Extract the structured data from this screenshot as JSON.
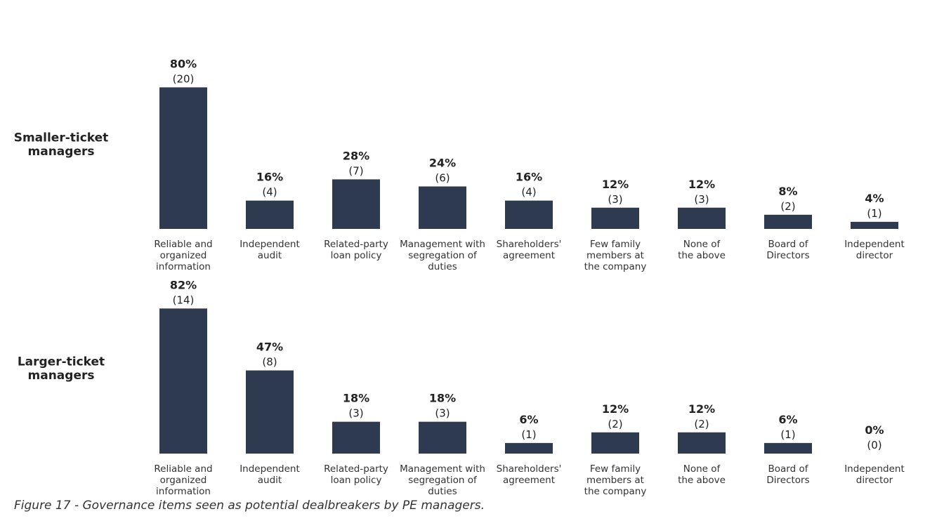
{
  "caption": "Figure 17 - Governance items seen as potential dealbreakers by PE managers.",
  "colors": {
    "bar": "#2d3a50",
    "text": "#222222"
  },
  "chart_data": [
    {
      "type": "bar",
      "title": "Smaller-ticket managers",
      "categories": [
        [
          "Reliable and",
          "organized",
          "information"
        ],
        [
          "Independent",
          "audit"
        ],
        [
          "Related-party",
          "loan policy"
        ],
        [
          "Management with",
          "segregation of",
          "duties"
        ],
        [
          "Shareholders'",
          "agreement"
        ],
        [
          "Few family",
          "members at",
          "the company"
        ],
        [
          "None of",
          "the above"
        ],
        [
          "Board of",
          "Directors"
        ],
        [
          "Independent",
          "director"
        ]
      ],
      "values": [
        80,
        16,
        28,
        24,
        16,
        12,
        12,
        8,
        4
      ],
      "percent_labels": [
        "80%",
        "16%",
        "28%",
        "24%",
        "16%",
        "12%",
        "12%",
        "8%",
        "4%"
      ],
      "count_labels": [
        "(20)",
        "(4)",
        "(7)",
        "(6)",
        "(4)",
        "(3)",
        "(3)",
        "(2)",
        "(1)"
      ],
      "ylim": [
        0,
        100
      ]
    },
    {
      "type": "bar",
      "title": "Larger-ticket managers",
      "categories": [
        [
          "Reliable and",
          "organized",
          "information"
        ],
        [
          "Independent",
          "audit"
        ],
        [
          "Related-party",
          "loan policy"
        ],
        [
          "Management with",
          "segregation of",
          "duties"
        ],
        [
          "Shareholders'",
          "agreement"
        ],
        [
          "Few family",
          "members at",
          "the company"
        ],
        [
          "None of",
          "the above"
        ],
        [
          "Board of",
          "Directors"
        ],
        [
          "Independent",
          "director"
        ]
      ],
      "values": [
        82,
        47,
        18,
        18,
        6,
        12,
        12,
        6,
        0
      ],
      "percent_labels": [
        "82%",
        "47%",
        "18%",
        "18%",
        "6%",
        "12%",
        "12%",
        "6%",
        "0%"
      ],
      "count_labels": [
        "(14)",
        "(8)",
        "(3)",
        "(3)",
        "(1)",
        "(2)",
        "(2)",
        "(1)",
        "(0)"
      ],
      "ylim": [
        0,
        100
      ]
    }
  ]
}
